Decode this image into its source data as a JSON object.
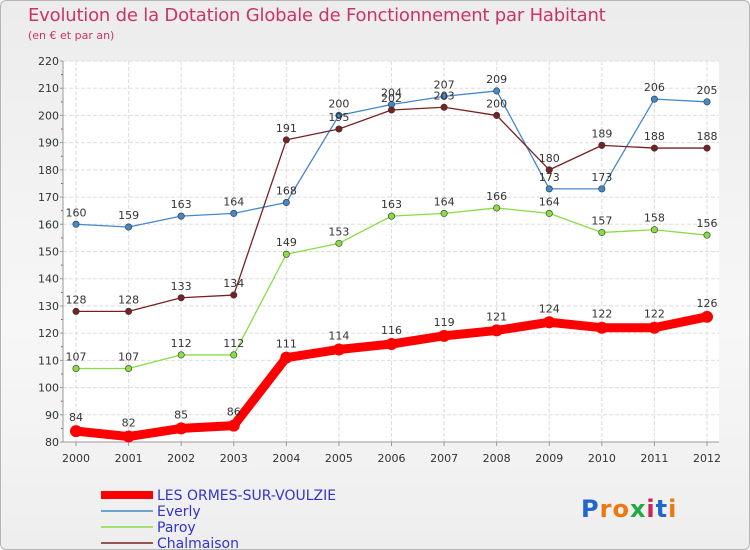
{
  "title": "Evolution de la Dotation Globale de Fonctionnement par Habitant",
  "subtitle": "(en € et par an)",
  "brand": {
    "text": "Proxiti",
    "letters": [
      "P",
      "r",
      "o",
      "x",
      "i",
      "t",
      "i"
    ],
    "colors": [
      "#2266cc",
      "#ee7711",
      "#ee7711",
      "#22aa44",
      "#cc2255",
      "#2266cc",
      "#ee7711"
    ]
  },
  "chart_data": {
    "type": "line",
    "title": "Evolution de la Dotation Globale de Fonctionnement par Habitant",
    "ylabel": "(en € et par an)",
    "xlabel": "",
    "ylim": [
      80,
      220
    ],
    "yticks": [
      80,
      90,
      100,
      110,
      120,
      130,
      140,
      150,
      160,
      170,
      180,
      190,
      200,
      210,
      220
    ],
    "categories": [
      "2000",
      "2001",
      "2002",
      "2003",
      "2004",
      "2005",
      "2006",
      "2007",
      "2008",
      "2009",
      "2010",
      "2011",
      "2012"
    ],
    "legend_position": "bottom-left",
    "series": [
      {
        "name": "LES ORMES-SUR-VOULZIE",
        "color": "#ff0000",
        "values": [
          84,
          82,
          85,
          86,
          111,
          114,
          116,
          119,
          121,
          124,
          122,
          122,
          126
        ]
      },
      {
        "name": "Everly",
        "color": "#4488cc",
        "values": [
          160,
          159,
          163,
          164,
          168,
          200,
          204,
          207,
          209,
          173,
          173,
          206,
          205
        ]
      },
      {
        "name": "Paroy",
        "color": "#88dd44",
        "values": [
          107,
          107,
          112,
          112,
          149,
          153,
          163,
          164,
          166,
          164,
          157,
          158,
          156
        ]
      },
      {
        "name": "Chalmaison",
        "color": "#772222",
        "values": [
          128,
          128,
          133,
          134,
          191,
          195,
          202,
          203,
          200,
          180,
          189,
          188,
          188
        ]
      }
    ]
  }
}
